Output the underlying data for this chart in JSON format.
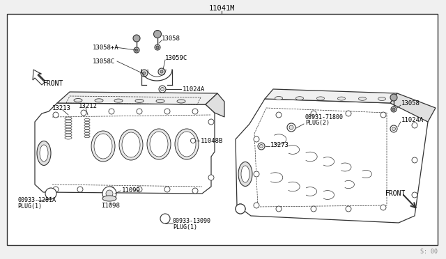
{
  "bg_color": "#f0f0f0",
  "box_color": "#ffffff",
  "line_color": "#333333",
  "label_color": "#000000",
  "labels": {
    "top_title": "11041M",
    "front_left": "FRONT",
    "front_right": "FRONT",
    "l13058_topA": "13058+A",
    "l13058_top": "13058",
    "l13058C_l": "13058C",
    "l13059C": "13059C",
    "l11024A_l": "11024A",
    "l13213": "13213",
    "l13212": "13212",
    "l11048B": "11048B",
    "l11099": "11099",
    "l11098": "I1098",
    "l00933_1281A_1": "00933-1281A",
    "l00933_1281A_2": "PLUG(1)",
    "l00933_13090_1": "00933-13090",
    "l00933_13090_2": "PLUG(1)",
    "l08931_1": "08931-71800",
    "l08931_2": "PLUG(2)",
    "l13273": "13273",
    "l13058_r": "13058",
    "l11024A_r": "11024A",
    "watermark": "S: 00"
  },
  "fig_w": 6.4,
  "fig_h": 3.72,
  "dpi": 100
}
